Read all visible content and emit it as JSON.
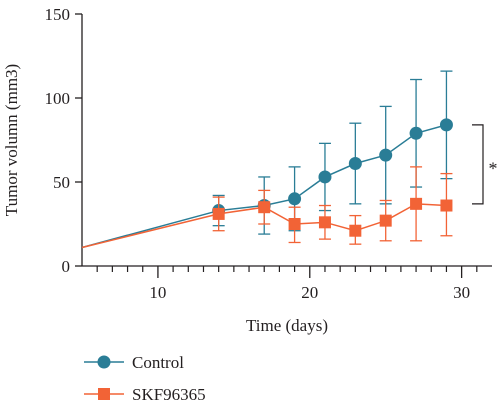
{
  "chart_data": {
    "type": "line",
    "xlabel": "Time (days)",
    "ylabel": "Tumor volumn (mm3)",
    "xlim": [
      5,
      32
    ],
    "ylim": [
      0,
      150
    ],
    "x_ticks_major": [
      10,
      20,
      30
    ],
    "x_ticks_minor": [
      6,
      7,
      8,
      9,
      11,
      12,
      13,
      14,
      15,
      16,
      17,
      18,
      19,
      21,
      22,
      23,
      24,
      25,
      26,
      27,
      28,
      29,
      31
    ],
    "y_ticks": [
      0,
      50,
      100,
      150
    ],
    "grid": false,
    "legend_position": "bottom-left",
    "significance_label": "*",
    "significance_range": [
      37,
      84
    ],
    "series": [
      {
        "name": "Control",
        "color": "#2a7d96",
        "marker": "circle",
        "origin": [
          5,
          11
        ],
        "x": [
          14,
          17,
          19,
          21,
          23,
          25,
          27,
          29
        ],
        "y": [
          33,
          36,
          40,
          53,
          61,
          66,
          79,
          84
        ],
        "err_upper": [
          9,
          17,
          19,
          20,
          24,
          29,
          32,
          32
        ],
        "err_lower": [
          9,
          17,
          19,
          20,
          24,
          29,
          32,
          32
        ]
      },
      {
        "name": "SKF96365",
        "color": "#f26336",
        "marker": "square",
        "origin": [
          5,
          11
        ],
        "x": [
          14,
          17,
          19,
          21,
          23,
          25,
          27,
          29
        ],
        "y": [
          31,
          35,
          25,
          26,
          21,
          27,
          37,
          36
        ],
        "err_upper": [
          10,
          10,
          10,
          10,
          9,
          12,
          22,
          19
        ],
        "err_lower": [
          10,
          10,
          11,
          10,
          8,
          12,
          22,
          18
        ]
      }
    ]
  }
}
